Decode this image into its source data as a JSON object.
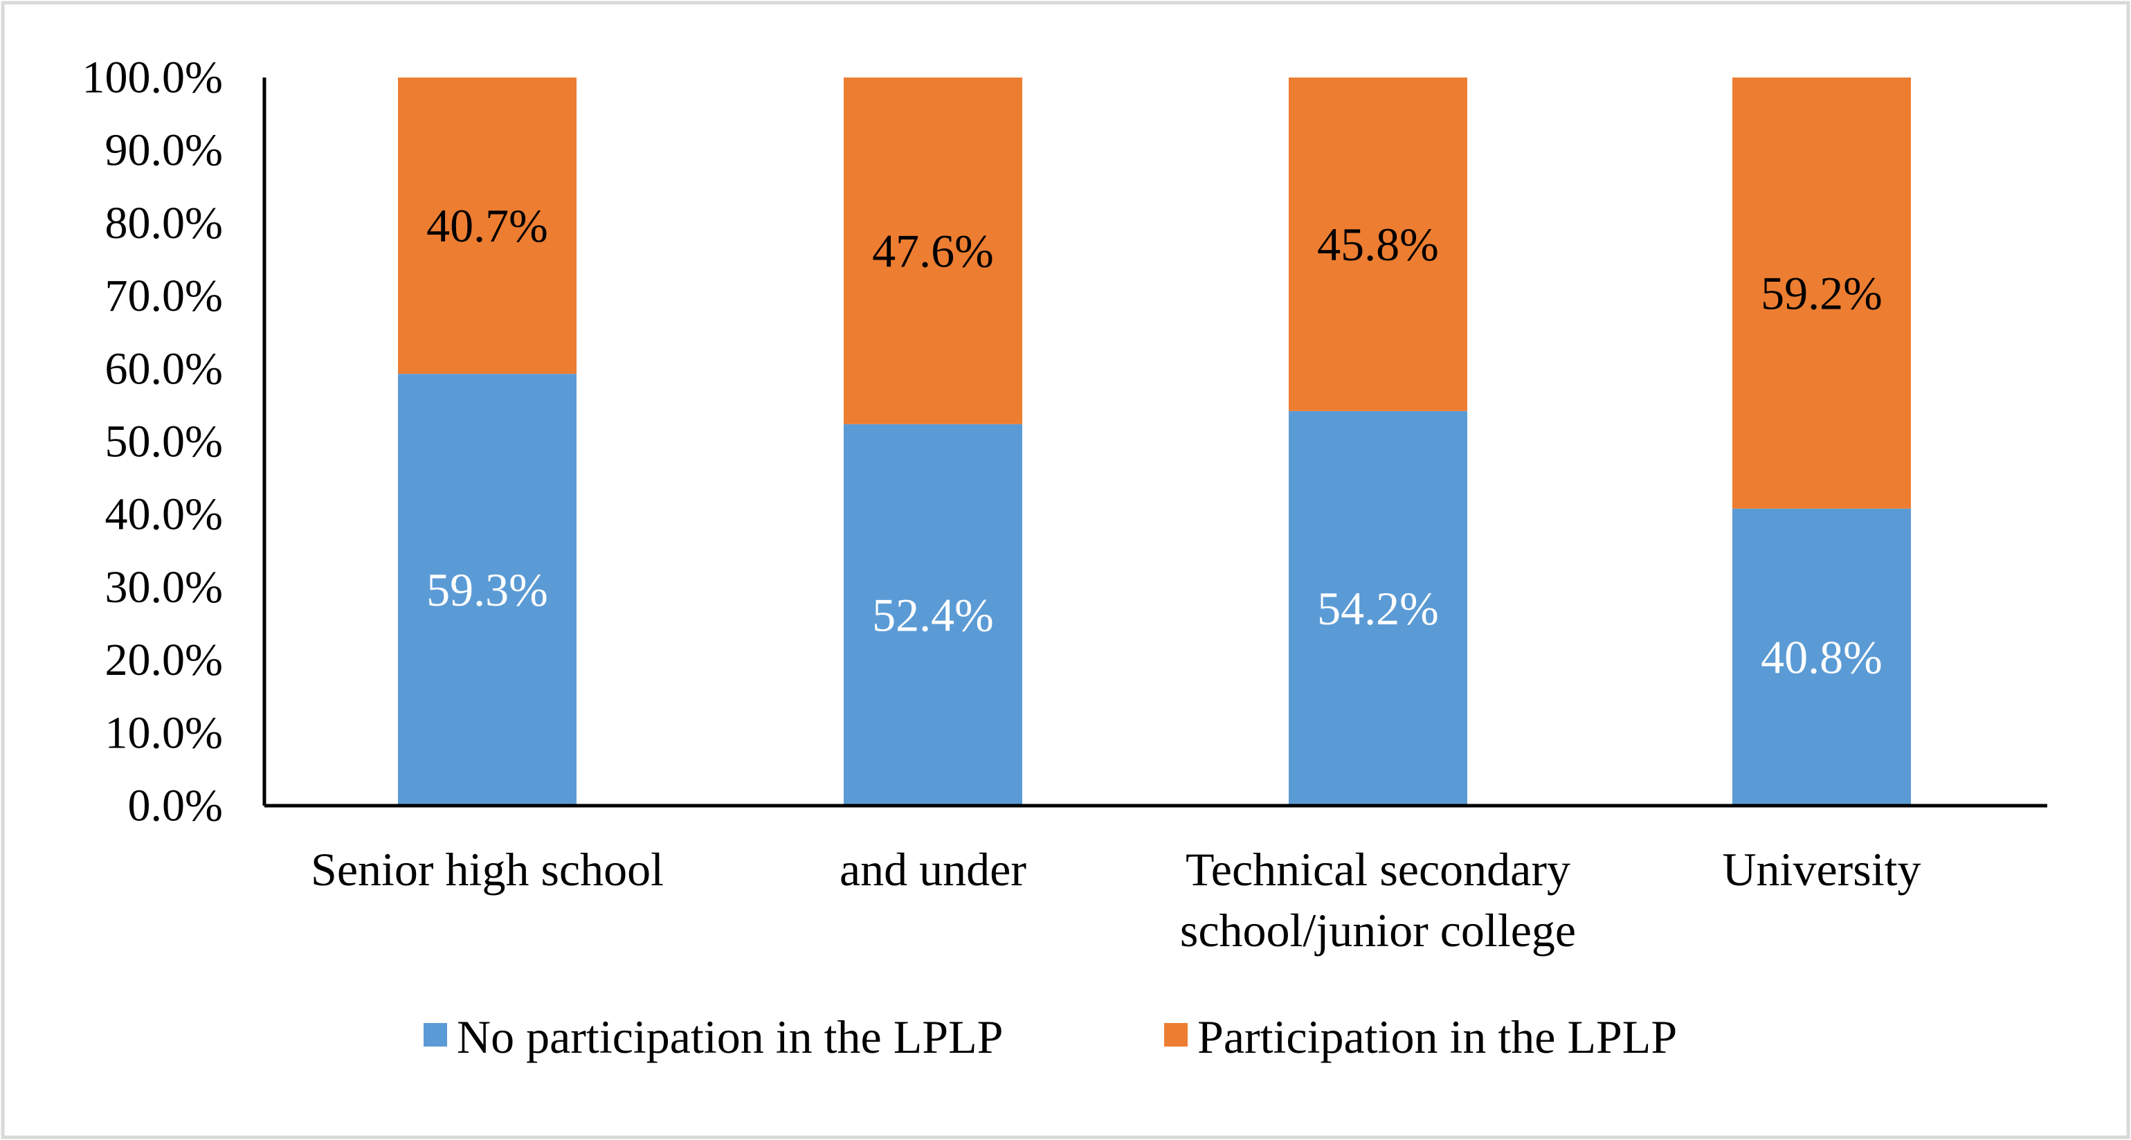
{
  "chart_data": {
    "type": "bar",
    "stacked": true,
    "categories": [
      [
        "Senior high school"
      ],
      [
        "and under"
      ],
      [
        "Technical secondary",
        "school/junior college"
      ],
      [
        "University"
      ]
    ],
    "series": [
      {
        "name": "No participation in the LPLP",
        "values": [
          59.3,
          52.4,
          54.2,
          40.8
        ],
        "labels": [
          "59.3%",
          "52.4%",
          "54.2%",
          "40.8%"
        ],
        "color": "#5B9BD5",
        "label_color": "#FFFFFF"
      },
      {
        "name": "Participation in the LPLP",
        "values": [
          40.7,
          47.6,
          45.8,
          59.2
        ],
        "labels": [
          "40.7%",
          "47.6%",
          "45.8%",
          "59.2%"
        ],
        "color": "#ED7D31",
        "label_color": "#000000"
      }
    ],
    "ylim": [
      0,
      100
    ],
    "yticks": [
      "0.0%",
      "10.0%",
      "20.0%",
      "30.0%",
      "40.0%",
      "50.0%",
      "60.0%",
      "70.0%",
      "80.0%",
      "90.0%",
      "100.0%"
    ],
    "grid": false,
    "legend_position": "bottom"
  }
}
